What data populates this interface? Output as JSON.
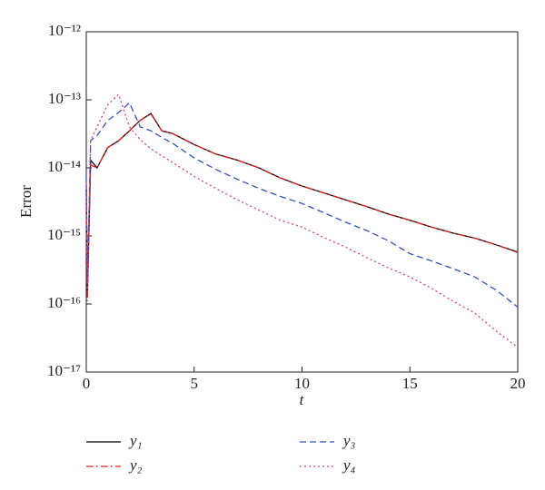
{
  "chart_data": {
    "type": "line",
    "x_label": "t",
    "y_label": "Error",
    "yscale": "log",
    "x": [
      0,
      0.05,
      0.2,
      0.5,
      1,
      1.5,
      2,
      2.5,
      3,
      3.5,
      4,
      5,
      6,
      7,
      8,
      9,
      10,
      11,
      12,
      13,
      14,
      15,
      16,
      17,
      18,
      19,
      20
    ],
    "series": [
      {
        "name": "y₁",
        "color": "#000000",
        "values": [
          5e-15,
          1.3e-16,
          1.3e-14,
          1e-14,
          2e-14,
          2.5e-14,
          3.5e-14,
          5e-14,
          6.3e-14,
          3.5e-14,
          3.2e-14,
          2.2e-14,
          1.6e-14,
          1.3e-14,
          1e-14,
          7.1e-15,
          5.4e-15,
          4.3e-15,
          3.4e-15,
          2.7e-15,
          2.1e-15,
          1.7e-15,
          1.35e-15,
          1.1e-15,
          9.3e-16,
          7.4e-16,
          5.8e-16
        ]
      },
      {
        "name": "y₂",
        "color": "#e0201b",
        "values": [
          3e-15,
          1.1e-16,
          1.1e-14,
          1e-14,
          2e-14,
          2.5e-14,
          3.5e-14,
          5e-14,
          6.2e-14,
          3.5e-14,
          3.2e-14,
          2.2e-14,
          1.6e-14,
          1.3e-14,
          1e-14,
          7.1e-15,
          5.4e-15,
          4.3e-15,
          3.4e-15,
          2.7e-15,
          2.1e-15,
          1.7e-15,
          1.35e-15,
          1.1e-15,
          9.3e-16,
          7.4e-16,
          5.7e-16
        ]
      },
      {
        "name": "y₃",
        "color": "#3553b5",
        "values": [
          8e-15,
          2e-16,
          2.5e-14,
          3e-14,
          5e-14,
          6.5e-14,
          9e-14,
          4e-14,
          3.5e-14,
          2.8e-14,
          2.3e-14,
          1.4e-14,
          9.5e-15,
          6.8e-15,
          5e-15,
          3.8e-15,
          3e-15,
          2.2e-15,
          1.6e-15,
          1.2e-15,
          8.5e-16,
          5.5e-16,
          4.3e-16,
          3.3e-16,
          2.5e-16,
          1.6e-16,
          9e-17
        ]
      },
      {
        "name": "y₄",
        "color": "#d23c8c",
        "values": [
          6e-15,
          1.5e-16,
          2.5e-14,
          4e-14,
          8.5e-14,
          1.2e-13,
          4e-14,
          2.6e-14,
          1.9e-14,
          1.5e-14,
          1.2e-14,
          7.5e-15,
          5e-15,
          3.4e-15,
          2.4e-15,
          1.7e-15,
          1.35e-15,
          9.5e-16,
          6.9e-16,
          4.8e-16,
          3.4e-16,
          2.5e-16,
          1.7e-16,
          1.1e-16,
          7.4e-17,
          4e-17,
          2.3e-17
        ]
      }
    ],
    "xlim": [
      0,
      20
    ],
    "xticks": [
      0,
      5,
      10,
      15,
      20
    ],
    "ylim": [
      1e-17,
      1e-12
    ],
    "yticks": [
      {
        "value": 1e-17,
        "label": "10⁻¹⁷"
      },
      {
        "value": 1e-16,
        "label": "10⁻¹⁶"
      },
      {
        "value": 1e-15,
        "label": "10⁻¹⁵"
      },
      {
        "value": 1e-14,
        "label": "10⁻¹⁴"
      },
      {
        "value": 1e-13,
        "label": "10⁻¹³"
      },
      {
        "value": 1e-12,
        "label": "10⁻¹²"
      }
    ]
  }
}
